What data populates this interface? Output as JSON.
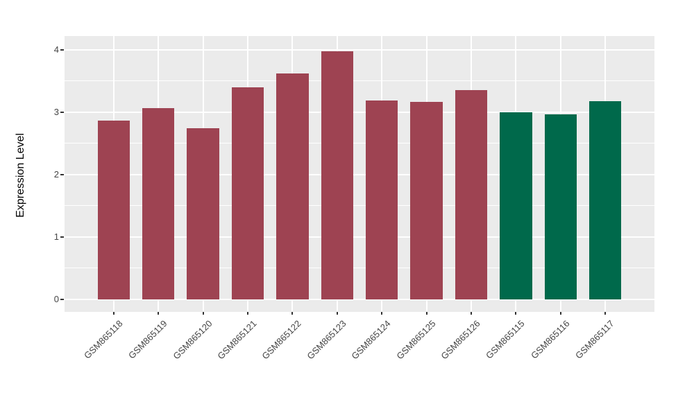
{
  "chart_data": {
    "type": "bar",
    "title": "",
    "xlabel": "",
    "ylabel": "Expression Level",
    "categories": [
      "GSM865118",
      "GSM865119",
      "GSM865120",
      "GSM865121",
      "GSM865122",
      "GSM865123",
      "GSM865124",
      "GSM865125",
      "GSM865126",
      "GSM865115",
      "GSM865116",
      "GSM865117"
    ],
    "values": [
      2.87,
      3.06,
      2.74,
      3.4,
      3.62,
      3.98,
      3.19,
      3.16,
      3.35,
      3.0,
      2.96,
      3.18
    ],
    "bar_colors": [
      "#9E4352",
      "#9E4352",
      "#9E4352",
      "#9E4352",
      "#9E4352",
      "#9E4352",
      "#9E4352",
      "#9E4352",
      "#9E4352",
      "#00694B",
      "#00694B",
      "#00694B"
    ],
    "group_colors": {
      "first_nine": "#9E4352",
      "last_three": "#00694B"
    },
    "yticks": [
      0,
      1,
      2,
      3,
      4
    ],
    "ytick_labels": [
      "0",
      "1",
      "2",
      "3",
      "4"
    ],
    "minor_yticks": [
      0.5,
      1.5,
      2.5,
      3.5
    ],
    "ylim": [
      -0.2,
      4.22
    ],
    "grid": "major and minor horizontal white lines, vertical white lines at bar centers",
    "legend": "none",
    "style": {
      "panel_background": "#EBEBEB",
      "figure_background": "#FFFFFF",
      "grid_color": "#FFFFFF",
      "tick_mark_color": "#333333",
      "axis_text_color": "#454545"
    }
  }
}
